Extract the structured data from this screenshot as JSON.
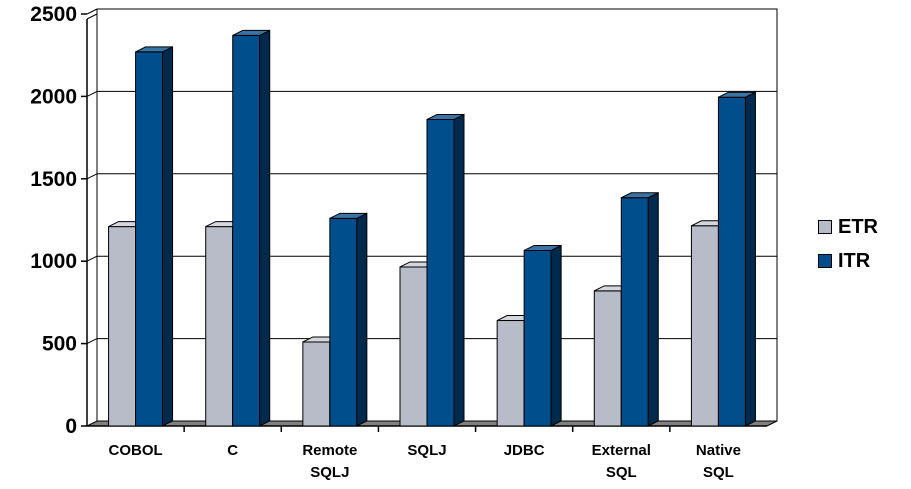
{
  "chart_data": {
    "type": "bar",
    "title": "",
    "xlabel": "",
    "ylabel": "",
    "ylim": [
      0,
      2500
    ],
    "yticks": [
      "0",
      "500",
      "1000",
      "1500",
      "2000",
      "2500"
    ],
    "grid": true,
    "legend_position": "right",
    "style": "3d-clustered-bar",
    "categories": [
      [
        "COBOL"
      ],
      [
        "C"
      ],
      [
        "Remote",
        "SQLJ"
      ],
      [
        "SQLJ"
      ],
      [
        "JDBC"
      ],
      [
        "External",
        "SQL"
      ],
      [
        "Native",
        "SQL"
      ]
    ],
    "series": [
      {
        "name": "ETR",
        "color": "#b8bcc8",
        "side_color": "#8a8e98",
        "top_color": "#d4d7de",
        "values": [
          1210,
          1210,
          510,
          965,
          640,
          820,
          1215
        ]
      },
      {
        "name": "ITR",
        "color": "#004f8c",
        "side_color": "#002a4d",
        "top_color": "#3a73a6",
        "values": [
          2270,
          2370,
          1260,
          1860,
          1065,
          1385,
          1995
        ]
      }
    ]
  }
}
